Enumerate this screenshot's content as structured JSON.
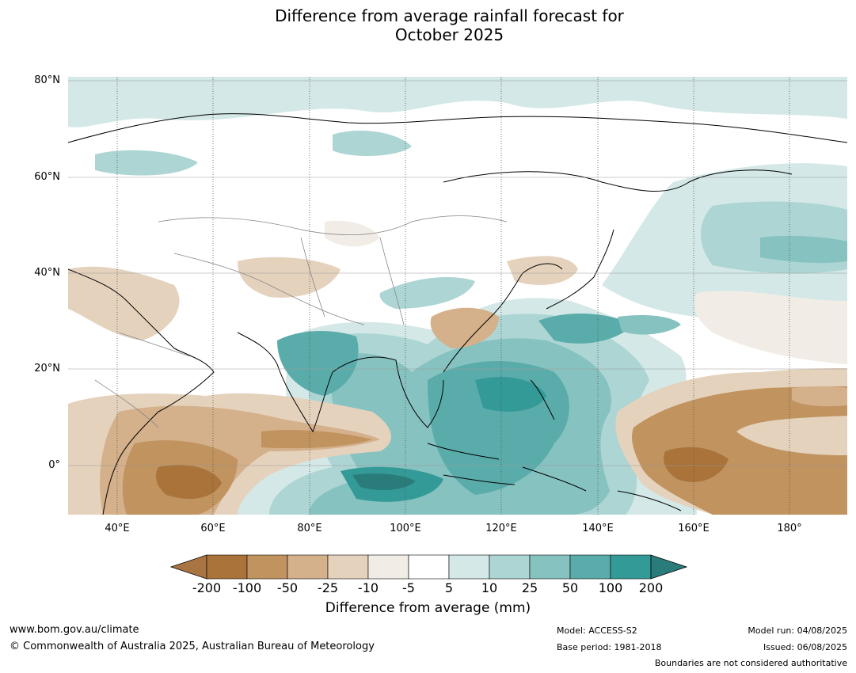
{
  "title": "Difference from average rainfall forecast for\nOctober 2025",
  "map": {
    "lat_labels": [
      "80°N",
      "60°N",
      "40°N",
      "20°N",
      "0°"
    ],
    "lon_labels": [
      "40°E",
      "60°E",
      "80°E",
      "100°E",
      "120°E",
      "140°E",
      "160°E",
      "180°"
    ]
  },
  "legend": {
    "title": "Difference from average (mm)",
    "tick_labels": [
      "-200",
      "-100",
      "-50",
      "-25",
      "-10",
      "-5",
      "5",
      "10",
      "25",
      "50",
      "100",
      "200"
    ],
    "colors": [
      "#a87542",
      "#a9733a",
      "#c0935f",
      "#d4b08b",
      "#e5d2bd",
      "#f1ede6",
      "#ffffff",
      "#d3e8e7",
      "#acd5d4",
      "#86c2c0",
      "#5aacab",
      "#349a97",
      "#2a7c7a"
    ]
  },
  "footer": {
    "website": "www.bom.gov.au/climate",
    "copyright": "© Commonwealth of Australia 2025, Australian Bureau of Meteorology",
    "model": "Model: ACCESS-S2",
    "base_period": "Base period: 1981-2018",
    "model_run": "Model run: 04/08/2025",
    "issued": "Issued: 06/08/2025",
    "boundaries_note": "Boundaries are not considered authoritative"
  }
}
